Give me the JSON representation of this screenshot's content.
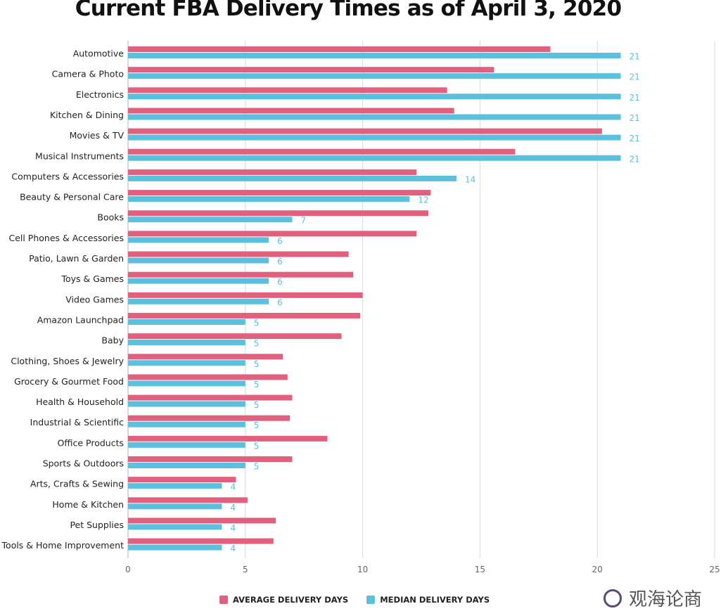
{
  "chart_data": {
    "type": "bar",
    "orientation": "horizontal",
    "title": "Current FBA Delivery Times as of April 3, 2020",
    "categories": [
      "Automotive",
      "Camera & Photo",
      "Electronics",
      "Kitchen & Dining",
      "Movies & TV",
      "Musical Instruments",
      "Computers & Accessories",
      "Beauty & Personal Care",
      "Books",
      "Cell Phones & Accessories",
      "Patio, Lawn & Garden",
      "Toys & Games",
      "Video Games",
      "Amazon Launchpad",
      "Baby",
      "Clothing, Shoes & Jewelry",
      "Grocery & Gourmet Food",
      "Health & Household",
      "Industrial & Scientific",
      "Office Products",
      "Sports & Outdoors",
      "Arts, Crafts & Sewing",
      "Home & Kitchen",
      "Pet Supplies",
      "Tools & Home Improvement"
    ],
    "series": [
      {
        "name": "AVERAGE DELIVERY DAYS",
        "color": "#e0607e",
        "values": [
          18.0,
          15.6,
          13.6,
          13.9,
          20.2,
          16.5,
          12.3,
          12.9,
          12.8,
          12.3,
          9.4,
          9.6,
          10.0,
          9.9,
          9.1,
          6.6,
          6.8,
          7.0,
          6.9,
          8.5,
          7.0,
          4.6,
          5.1,
          6.3,
          6.2
        ]
      },
      {
        "name": "MEDIAN DELIVERY DAYS",
        "color": "#5bc0de",
        "values": [
          21,
          21,
          21,
          21,
          21,
          21,
          14,
          12,
          7,
          6,
          6,
          6,
          6,
          5,
          5,
          5,
          5,
          5,
          5,
          5,
          5,
          4,
          4,
          4,
          4
        ]
      }
    ],
    "median_labels": [
      "21",
      "21",
      "21",
      "21",
      "21",
      "21",
      "14",
      "12",
      "7",
      "6",
      "6",
      "6",
      "6",
      "5",
      "5",
      "5",
      "5",
      "5",
      "5",
      "5",
      "5",
      "4",
      "4",
      "4",
      "4"
    ],
    "x_ticks": [
      "0",
      "5",
      "10",
      "15",
      "20",
      "25"
    ],
    "xlim": [
      0,
      25
    ],
    "grid": "vertical",
    "legend_position": "bottom"
  },
  "watermark": {
    "text": "观海论商"
  }
}
